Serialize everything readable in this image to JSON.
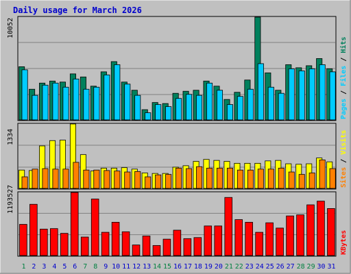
{
  "title": "Daily usage for March 2026",
  "colors": {
    "background": "#c0c0c0",
    "title": "#0000cc",
    "hits": "#00805c",
    "files": "#00ccff",
    "pages": "#00ccff",
    "visits": "#ffff00",
    "sites": "#ff8000",
    "kbytes": "#ff0000",
    "weekday_label": "#0000cc",
    "weekend_label": "#008040"
  },
  "chart_data": [
    {
      "type": "bar",
      "categories": [
        "1",
        "2",
        "3",
        "4",
        "5",
        "6",
        "7",
        "8",
        "9",
        "10",
        "11",
        "12",
        "13",
        "14",
        "15",
        "16",
        "17",
        "18",
        "19",
        "20",
        "21",
        "22",
        "23",
        "24",
        "25",
        "26",
        "27",
        "28",
        "29",
        "30",
        "31"
      ],
      "weekend_days": [
        "1",
        "7",
        "8",
        "14",
        "15",
        "21",
        "22",
        "28",
        "29"
      ],
      "ymax_label": "10052",
      "ylim": [
        0,
        10052
      ],
      "legend": [
        "Pages",
        "Files",
        "Hits"
      ],
      "series": [
        {
          "name": "Hits",
          "values": [
            5200,
            3000,
            3600,
            3800,
            3700,
            4500,
            4200,
            3300,
            4700,
            5700,
            3700,
            2900,
            1000,
            1700,
            1600,
            2600,
            2800,
            2900,
            3800,
            3300,
            2000,
            2700,
            3900,
            10052,
            4600,
            2900,
            5400,
            5100,
            5300,
            6000,
            5000
          ]
        },
        {
          "name": "Files",
          "values": [
            4900,
            2400,
            3400,
            3600,
            3200,
            4000,
            3000,
            3200,
            4400,
            5400,
            3500,
            2400,
            700,
            1500,
            1300,
            2100,
            2500,
            2400,
            3600,
            2900,
            1500,
            2300,
            3000,
            5500,
            3200,
            2600,
            5000,
            4800,
            5000,
            5400,
            4700
          ]
        }
      ]
    },
    {
      "type": "bar",
      "categories": [
        "1",
        "2",
        "3",
        "4",
        "5",
        "6",
        "7",
        "8",
        "9",
        "10",
        "11",
        "12",
        "13",
        "14",
        "15",
        "16",
        "17",
        "18",
        "19",
        "20",
        "21",
        "22",
        "23",
        "24",
        "25",
        "26",
        "27",
        "28",
        "29",
        "30",
        "31"
      ],
      "ymax_label": "1334",
      "ylim": [
        0,
        1334
      ],
      "legend": [
        "Sites",
        "Visits"
      ],
      "series": [
        {
          "name": "Visits",
          "values": [
            380,
            370,
            880,
            990,
            1000,
            1334,
            700,
            360,
            420,
            420,
            430,
            400,
            320,
            310,
            310,
            440,
            470,
            560,
            600,
            580,
            560,
            520,
            520,
            520,
            570,
            580,
            510,
            500,
            510,
            630,
            550
          ]
        },
        {
          "name": "Sites",
          "values": [
            240,
            400,
            410,
            400,
            400,
            540,
            380,
            380,
            370,
            360,
            340,
            350,
            240,
            280,
            290,
            420,
            410,
            450,
            420,
            420,
            420,
            380,
            380,
            400,
            400,
            420,
            340,
            290,
            320,
            590,
            410
          ]
        }
      ]
    },
    {
      "type": "bar",
      "categories": [
        "1",
        "2",
        "3",
        "4",
        "5",
        "6",
        "7",
        "8",
        "9",
        "10",
        "11",
        "12",
        "13",
        "14",
        "15",
        "16",
        "17",
        "18",
        "19",
        "20",
        "21",
        "22",
        "23",
        "24",
        "25",
        "26",
        "27",
        "28",
        "29",
        "30",
        "31"
      ],
      "ymax_label": "1193527",
      "ylim": [
        0,
        1193527
      ],
      "legend": [
        "KBytes"
      ],
      "series": [
        {
          "name": "KBytes",
          "values": [
            590000,
            970000,
            500000,
            510000,
            420000,
            1193527,
            350000,
            1070000,
            440000,
            630000,
            450000,
            200000,
            370000,
            190000,
            310000,
            480000,
            320000,
            340000,
            560000,
            560000,
            1100000,
            680000,
            630000,
            440000,
            620000,
            520000,
            750000,
            770000,
            960000,
            1030000,
            890000
          ]
        }
      ]
    }
  ]
}
